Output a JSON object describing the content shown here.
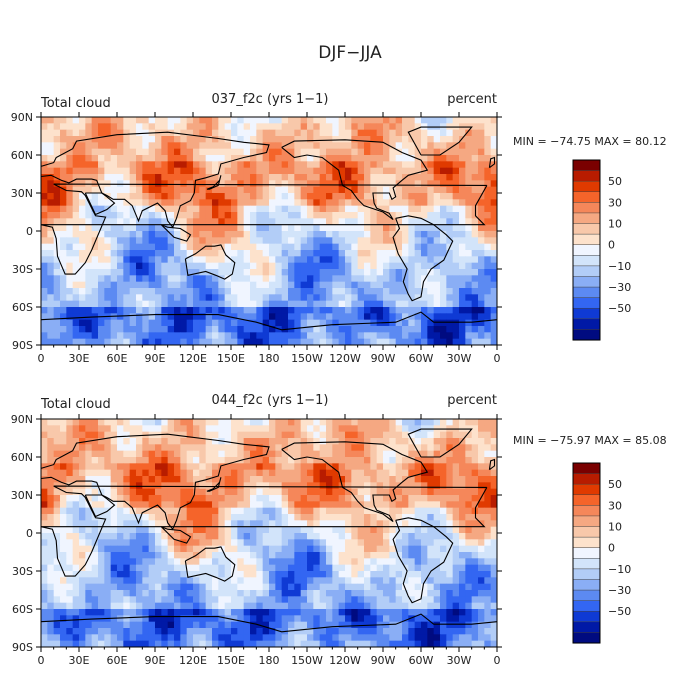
{
  "chart_data": {
    "type": "heatmap",
    "title": "DJF−JJA",
    "panels": [
      {
        "left_label": "Total cloud",
        "center_label": "037_f2c (yrs 1−1)",
        "right_label": "percent",
        "stats": "MIN = −74.75 MAX =  80.12",
        "min": -74.75,
        "max": 80.12,
        "seed": 1
      },
      {
        "left_label": "Total cloud",
        "center_label": "044_f2c (yrs 1−1)",
        "right_label": "percent",
        "stats": "MIN = −75.97 MAX =  85.08",
        "min": -75.97,
        "max": 85.08,
        "seed": 2
      }
    ],
    "x_ticks": [
      "0",
      "30E",
      "60E",
      "90E",
      "120E",
      "150E",
      "180",
      "150W",
      "120W",
      "90W",
      "60W",
      "30W",
      "0"
    ],
    "y_ticks": [
      "90N",
      "60N",
      "30N",
      "0",
      "30S",
      "60S",
      "90S"
    ],
    "x_range": [
      0,
      360
    ],
    "y_range": [
      -90,
      90
    ],
    "colorbar_labels": [
      "50",
      "30",
      "10",
      "0",
      "−10",
      "−30",
      "−50"
    ],
    "colorbar_colors": [
      "#7a0000",
      "#b81c00",
      "#e03a00",
      "#f5642a",
      "#f5875a",
      "#f5a882",
      "#f8c8aa",
      "#fde2cc",
      "#f0f5ff",
      "#d2e4fa",
      "#b2cdf7",
      "#8aaef5",
      "#5c8af2",
      "#3366f2",
      "#0f3ad4",
      "#0019a6",
      "#000b80"
    ]
  }
}
